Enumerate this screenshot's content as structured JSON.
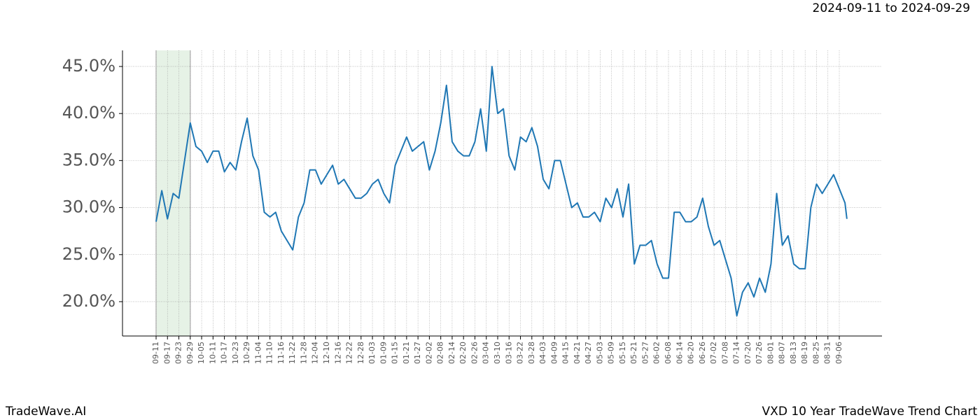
{
  "chart_data": {
    "type": "line",
    "header": "2024-09-11 to 2024-09-29",
    "footer_left": "TradeWave.AI",
    "footer_right": "VXD 10 Year TradeWave Trend Chart",
    "x": [
      0,
      3,
      6,
      9,
      12,
      15,
      18,
      21,
      24,
      27,
      30,
      33,
      36,
      39,
      42,
      45,
      48,
      51,
      54,
      57,
      60,
      63,
      66,
      69,
      72,
      75,
      78,
      81,
      84,
      87,
      90,
      93,
      96,
      99,
      102,
      105,
      108,
      111,
      114,
      117,
      120,
      123,
      126,
      129,
      132,
      135,
      138,
      141,
      144,
      147,
      150,
      153,
      156,
      159,
      162,
      165,
      168,
      171,
      174,
      177,
      180,
      183,
      186,
      189,
      192,
      195,
      198,
      201,
      204,
      207,
      210,
      213,
      216,
      219,
      222,
      225,
      228,
      231,
      234,
      237,
      240,
      243,
      246,
      249,
      252,
      255,
      258,
      261,
      264,
      267,
      270,
      273,
      276,
      279,
      282,
      285,
      288,
      291,
      294,
      297,
      300,
      303,
      306,
      309,
      312,
      315,
      318,
      321,
      324,
      327,
      330,
      333,
      336,
      339,
      342,
      345,
      348,
      351,
      354,
      357,
      360,
      363,
      364
    ],
    "series": [
      {
        "name": "VXD",
        "color": "#1f77b4",
        "values": [
          28.5,
          31.8,
          28.8,
          31.5,
          31,
          35,
          39,
          36.5,
          36,
          34.8,
          36,
          36,
          33.8,
          34.8,
          34,
          37,
          39.5,
          35.5,
          34,
          29.5,
          29,
          29.5,
          27.5,
          26.5,
          25.5,
          29,
          30.5,
          34,
          34,
          32.5,
          33.5,
          34.5,
          32.5,
          33,
          32,
          31,
          31,
          31.5,
          32.5,
          33,
          31.5,
          30.5,
          34.5,
          36,
          37.5,
          36,
          36.5,
          37,
          34,
          36,
          39,
          43,
          37,
          36,
          35.5,
          35.5,
          37,
          40.5,
          36,
          45,
          40,
          40.5,
          35.5,
          34,
          37.5,
          37,
          38.5,
          36.5,
          33,
          32,
          35,
          35,
          32.5,
          30,
          30.5,
          29,
          29,
          29.5,
          28.5,
          31,
          30,
          32,
          29,
          32.5,
          24,
          26,
          26,
          26.5,
          24,
          22.5,
          22.5,
          29.5,
          29.5,
          28.5,
          28.5,
          29,
          31,
          28,
          26,
          26.5,
          24.5,
          22.5,
          18.5,
          21,
          22,
          20.5,
          22.5,
          21,
          24,
          31.5,
          26,
          27,
          24,
          23.5,
          23.5,
          30,
          32.5,
          31.5,
          32.5,
          33.5,
          32,
          30.5,
          28.8
        ]
      }
    ],
    "shade_xlim": [
      0,
      18
    ],
    "shade_color": "#e6f2e6",
    "xlim": [
      -17.7,
      382.5
    ],
    "ylim": [
      16.35,
      46.71
    ],
    "yticks": [
      {
        "value": 20,
        "label": "20.0%"
      },
      {
        "value": 25,
        "label": "25.0%"
      },
      {
        "value": 30,
        "label": "30.0%"
      },
      {
        "value": 35,
        "label": "35.0%"
      },
      {
        "value": 40,
        "label": "40.0%"
      },
      {
        "value": 45,
        "label": "45.0%"
      }
    ],
    "xticks": [
      {
        "value": 0,
        "label": "09-11"
      },
      {
        "value": 6,
        "label": "09-17"
      },
      {
        "value": 12,
        "label": "09-23"
      },
      {
        "value": 18,
        "label": "09-29"
      },
      {
        "value": 24,
        "label": "10-05"
      },
      {
        "value": 30,
        "label": "10-11"
      },
      {
        "value": 36,
        "label": "10-17"
      },
      {
        "value": 42,
        "label": "10-23"
      },
      {
        "value": 48,
        "label": "10-29"
      },
      {
        "value": 54,
        "label": "11-04"
      },
      {
        "value": 60,
        "label": "11-10"
      },
      {
        "value": 66,
        "label": "11-16"
      },
      {
        "value": 72,
        "label": "11-22"
      },
      {
        "value": 78,
        "label": "11-28"
      },
      {
        "value": 84,
        "label": "12-04"
      },
      {
        "value": 90,
        "label": "12-10"
      },
      {
        "value": 96,
        "label": "12-16"
      },
      {
        "value": 102,
        "label": "12-22"
      },
      {
        "value": 108,
        "label": "12-28"
      },
      {
        "value": 114,
        "label": "01-03"
      },
      {
        "value": 120,
        "label": "01-09"
      },
      {
        "value": 126,
        "label": "01-15"
      },
      {
        "value": 132,
        "label": "01-21"
      },
      {
        "value": 138,
        "label": "01-27"
      },
      {
        "value": 144,
        "label": "02-02"
      },
      {
        "value": 150,
        "label": "02-08"
      },
      {
        "value": 156,
        "label": "02-14"
      },
      {
        "value": 162,
        "label": "02-20"
      },
      {
        "value": 168,
        "label": "02-26"
      },
      {
        "value": 174,
        "label": "03-04"
      },
      {
        "value": 180,
        "label": "03-10"
      },
      {
        "value": 186,
        "label": "03-16"
      },
      {
        "value": 192,
        "label": "03-22"
      },
      {
        "value": 198,
        "label": "03-28"
      },
      {
        "value": 204,
        "label": "04-03"
      },
      {
        "value": 210,
        "label": "04-09"
      },
      {
        "value": 216,
        "label": "04-15"
      },
      {
        "value": 222,
        "label": "04-21"
      },
      {
        "value": 228,
        "label": "04-27"
      },
      {
        "value": 234,
        "label": "05-03"
      },
      {
        "value": 240,
        "label": "05-09"
      },
      {
        "value": 246,
        "label": "05-15"
      },
      {
        "value": 252,
        "label": "05-21"
      },
      {
        "value": 258,
        "label": "05-27"
      },
      {
        "value": 264,
        "label": "06-02"
      },
      {
        "value": 270,
        "label": "06-08"
      },
      {
        "value": 276,
        "label": "06-14"
      },
      {
        "value": 282,
        "label": "06-20"
      },
      {
        "value": 288,
        "label": "06-26"
      },
      {
        "value": 294,
        "label": "07-02"
      },
      {
        "value": 300,
        "label": "07-08"
      },
      {
        "value": 306,
        "label": "07-14"
      },
      {
        "value": 312,
        "label": "07-20"
      },
      {
        "value": 318,
        "label": "07-26"
      },
      {
        "value": 324,
        "label": "08-01"
      },
      {
        "value": 330,
        "label": "08-07"
      },
      {
        "value": 336,
        "label": "08-13"
      },
      {
        "value": 342,
        "label": "08-19"
      },
      {
        "value": 348,
        "label": "08-25"
      },
      {
        "value": 354,
        "label": "08-31"
      },
      {
        "value": 360,
        "label": "09-06"
      }
    ],
    "grid": true
  }
}
